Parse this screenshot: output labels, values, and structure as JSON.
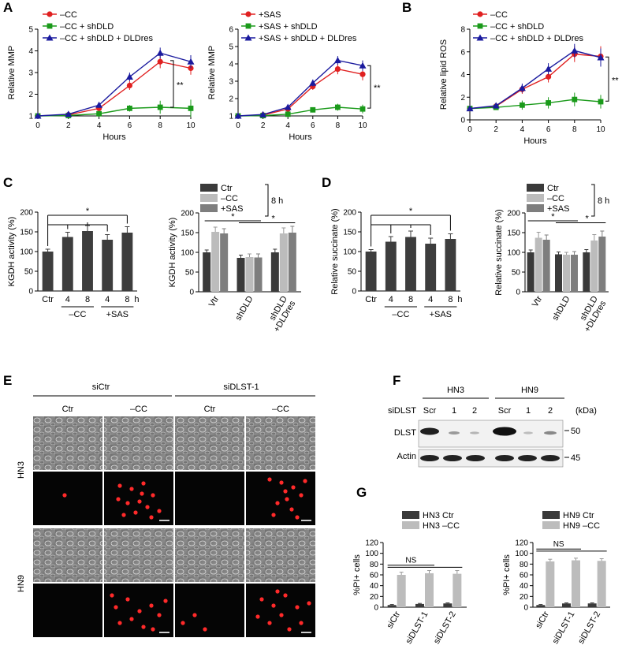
{
  "panels": {
    "A": "A",
    "B": "B",
    "C": "C",
    "D": "D",
    "E": "E",
    "F": "F",
    "G": "G"
  },
  "sig": {
    "double": "**",
    "single": "*",
    "ns": "NS"
  },
  "chart_data": [
    {
      "id": "A1",
      "type": "line",
      "xlabel": "Hours",
      "ylabel": "Relative MMP",
      "ylim": [
        1,
        5
      ],
      "yticks": [
        1,
        2,
        3,
        4,
        5
      ],
      "xticks": [
        0,
        2,
        4,
        6,
        8,
        10
      ],
      "x": [
        0,
        2,
        4,
        6,
        8,
        10
      ],
      "series": [
        {
          "name": "–CC",
          "color": "#e02020",
          "marker": "circle",
          "values": [
            1.0,
            1.05,
            1.35,
            2.4,
            3.5,
            3.2
          ],
          "err": [
            0.05,
            0.08,
            0.12,
            0.2,
            0.3,
            0.3
          ]
        },
        {
          "name": "–CC + shDLD",
          "color": "#1a9a1a",
          "marker": "square",
          "values": [
            1.0,
            1.02,
            1.1,
            1.35,
            1.4,
            1.35
          ],
          "err": [
            0.05,
            0.05,
            0.1,
            0.15,
            0.3,
            0.4
          ]
        },
        {
          "name": "–CC + shDLD + DLDres",
          "color": "#1a1a9e",
          "marker": "triangle",
          "values": [
            1.0,
            1.08,
            1.5,
            2.8,
            3.9,
            3.5
          ],
          "err": [
            0.05,
            0.08,
            0.12,
            0.2,
            0.25,
            0.3
          ]
        }
      ]
    },
    {
      "id": "A2",
      "type": "line",
      "xlabel": "Hours",
      "ylabel": "Relative MMP",
      "ylim": [
        1,
        6
      ],
      "yticks": [
        1,
        2,
        3,
        4,
        5,
        6
      ],
      "xticks": [
        0,
        2,
        4,
        6,
        8,
        10
      ],
      "x": [
        0,
        2,
        4,
        6,
        8,
        10
      ],
      "series": [
        {
          "name": "+SAS",
          "color": "#e02020",
          "marker": "circle",
          "values": [
            1.0,
            1.05,
            1.4,
            2.7,
            3.7,
            3.4
          ],
          "err": [
            0.05,
            0.08,
            0.12,
            0.2,
            0.3,
            0.35
          ]
        },
        {
          "name": "+SAS + shDLD",
          "color": "#1a9a1a",
          "marker": "square",
          "values": [
            1.0,
            1.02,
            1.1,
            1.35,
            1.5,
            1.4
          ],
          "err": [
            0.05,
            0.05,
            0.1,
            0.15,
            0.2,
            0.25
          ]
        },
        {
          "name": "+SAS + shDLD + DLDres",
          "color": "#1a1a9e",
          "marker": "triangle",
          "values": [
            1.0,
            1.08,
            1.5,
            2.9,
            4.2,
            3.9
          ],
          "err": [
            0.05,
            0.08,
            0.12,
            0.2,
            0.25,
            0.3
          ]
        }
      ]
    },
    {
      "id": "B",
      "type": "line",
      "xlabel": "Hours",
      "ylabel": "Relative lipid ROS",
      "ylim": [
        0,
        8
      ],
      "yticks": [
        0,
        2,
        4,
        6,
        8
      ],
      "xticks": [
        0,
        2,
        4,
        6,
        8,
        10
      ],
      "x": [
        0,
        2,
        4,
        6,
        8,
        10
      ],
      "series": [
        {
          "name": "–CC",
          "color": "#e02020",
          "marker": "circle",
          "values": [
            1.0,
            1.2,
            2.7,
            3.8,
            5.8,
            5.6
          ],
          "err": [
            0.1,
            0.2,
            0.4,
            0.5,
            0.7,
            0.9
          ]
        },
        {
          "name": "–CC + shDLD",
          "color": "#1a9a1a",
          "marker": "square",
          "values": [
            1.0,
            1.1,
            1.3,
            1.5,
            1.8,
            1.6
          ],
          "err": [
            0.1,
            0.15,
            0.4,
            0.5,
            0.6,
            0.6
          ]
        },
        {
          "name": "–CC + shDLD + DLDres",
          "color": "#1a1a9e",
          "marker": "triangle",
          "values": [
            1.0,
            1.25,
            2.8,
            4.5,
            6.1,
            5.5
          ],
          "err": [
            0.1,
            0.2,
            0.4,
            0.5,
            0.6,
            0.8
          ]
        }
      ]
    },
    {
      "id": "C1",
      "type": "bar",
      "ylabel": "KGDH activity (%)",
      "ylim": [
        0,
        200
      ],
      "yticks": [
        0,
        50,
        100,
        150,
        200
      ],
      "categories": [
        "Ctr",
        "4",
        "8",
        "4",
        "8"
      ],
      "groups": [
        "–CC",
        "+SAS"
      ],
      "unit": "h",
      "values": [
        100,
        137,
        152,
        130,
        148
      ],
      "err": [
        6,
        12,
        14,
        13,
        15
      ]
    },
    {
      "id": "C2",
      "type": "bar",
      "ylabel": "KGDH activity (%)",
      "ylim": [
        0,
        200
      ],
      "yticks": [
        0,
        50,
        100,
        150,
        200
      ],
      "categories": [
        "Vtr",
        "shDLD",
        "shDLD\n+DLDres"
      ],
      "legend_bracket": "8 h",
      "series": [
        {
          "name": "Ctr",
          "color": "#3a3a3a",
          "values": [
            100,
            86,
            100
          ],
          "err": [
            6,
            7,
            8
          ]
        },
        {
          "name": "–CC",
          "color": "#bcbcbc",
          "values": [
            152,
            88,
            148
          ],
          "err": [
            12,
            8,
            14
          ]
        },
        {
          "name": "+SAS",
          "color": "#7e7e7e",
          "values": [
            148,
            87,
            150
          ],
          "err": [
            12,
            9,
            16
          ]
        }
      ]
    },
    {
      "id": "D1",
      "type": "bar",
      "ylabel": "Relative succinate (%)",
      "ylim": [
        0,
        200
      ],
      "yticks": [
        0,
        50,
        100,
        150,
        200
      ],
      "categories": [
        "Ctr",
        "4",
        "8",
        "4",
        "8"
      ],
      "groups": [
        "–CC",
        "+SAS"
      ],
      "unit": "h",
      "values": [
        100,
        125,
        137,
        120,
        132
      ],
      "err": [
        5,
        13,
        15,
        14,
        13
      ]
    },
    {
      "id": "D2",
      "type": "bar",
      "ylabel": "Relative succinate (%)",
      "ylim": [
        0,
        200
      ],
      "yticks": [
        0,
        50,
        100,
        150,
        200
      ],
      "categories": [
        "Vtr",
        "shDLD",
        "shDLD\n+DLDres"
      ],
      "legend_bracket": "8 h",
      "series": [
        {
          "name": "Ctr",
          "color": "#3a3a3a",
          "values": [
            100,
            95,
            100
          ],
          "err": [
            6,
            6,
            7
          ]
        },
        {
          "name": "–CC",
          "color": "#bcbcbc",
          "values": [
            137,
            94,
            130
          ],
          "err": [
            14,
            6,
            15
          ]
        },
        {
          "name": "+SAS",
          "color": "#7e7e7e",
          "values": [
            132,
            94,
            140
          ],
          "err": [
            12,
            8,
            14
          ]
        }
      ]
    },
    {
      "id": "G1",
      "type": "bar",
      "ylabel": "%PI+ cells",
      "ylim": [
        0,
        120
      ],
      "yticks": [
        0,
        20,
        40,
        60,
        80,
        100,
        120
      ],
      "categories": [
        "siCtr",
        "siDLST-1",
        "siDLST-2"
      ],
      "series": [
        {
          "name": "HN3 Ctr",
          "color": "#3a3a3a",
          "values": [
            4,
            6,
            7
          ],
          "err": [
            1,
            1,
            1
          ]
        },
        {
          "name": "HN3 –CC",
          "color": "#bcbcbc",
          "values": [
            60,
            63,
            62
          ],
          "err": [
            5,
            5,
            6
          ]
        }
      ]
    },
    {
      "id": "G2",
      "type": "bar",
      "ylabel": "%PI+ cells",
      "ylim": [
        0,
        120
      ],
      "yticks": [
        0,
        20,
        40,
        60,
        80,
        100,
        120
      ],
      "categories": [
        "siCtr",
        "siDLST-1",
        "siDLST-2"
      ],
      "series": [
        {
          "name": "HN9 Ctr",
          "color": "#3a3a3a",
          "values": [
            4,
            7,
            7
          ],
          "err": [
            1,
            1,
            1
          ]
        },
        {
          "name": "HN9 –CC",
          "color": "#bcbcbc",
          "values": [
            85,
            87,
            86
          ],
          "err": [
            4,
            4,
            4
          ]
        }
      ]
    }
  ],
  "panelE": {
    "cols_top": [
      "siCtr",
      "siDLST-1"
    ],
    "cols": [
      "Ctr",
      "–CC",
      "Ctr",
      "–CC"
    ],
    "rows": [
      "HN3",
      "HN9"
    ]
  },
  "panelF": {
    "cells": [
      "HN3",
      "HN9"
    ],
    "rowlabel": "siDLST",
    "lanes": [
      "Scr",
      "1",
      "2",
      "Scr",
      "1",
      "2"
    ],
    "unit": "(kDa)",
    "bands": [
      "DLST",
      "Actin"
    ],
    "mw": [
      "50",
      "45"
    ]
  }
}
